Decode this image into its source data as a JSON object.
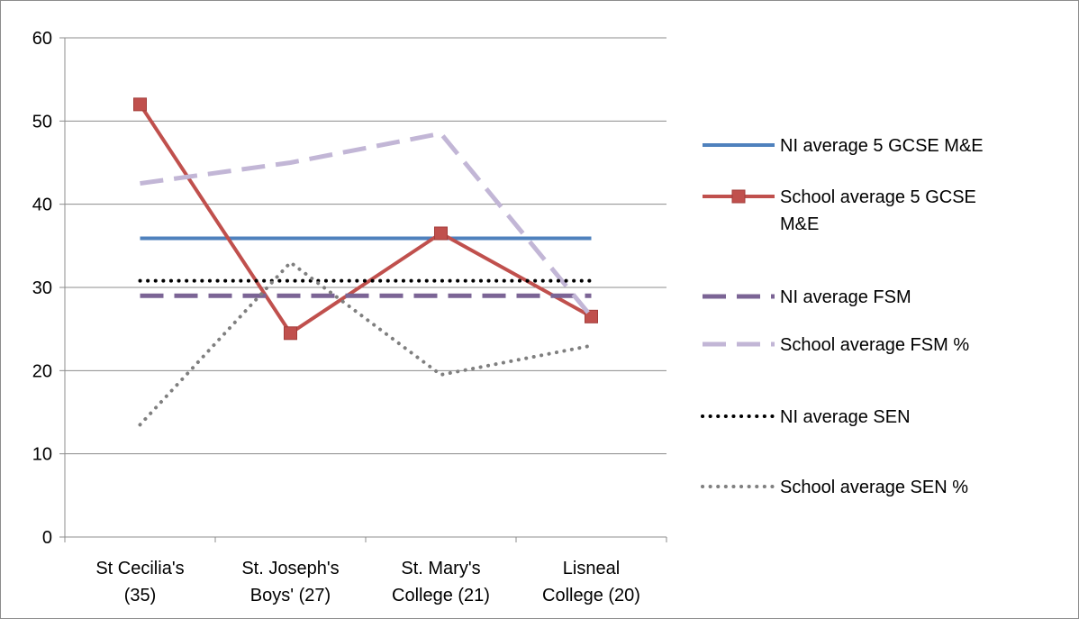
{
  "chart_data": {
    "type": "line",
    "title": "",
    "xlabel": "",
    "ylabel": "",
    "ylim": [
      0,
      60
    ],
    "yticks": [
      0,
      10,
      20,
      30,
      40,
      50,
      60
    ],
    "grid": true,
    "legend_position": "right",
    "categories": [
      [
        "St Cecilia's",
        "(35)"
      ],
      [
        "St. Joseph's",
        "Boys' (27)"
      ],
      [
        "St. Mary's",
        "College (21)"
      ],
      [
        "Lisneal",
        "College (20)"
      ]
    ],
    "series": [
      {
        "name": "NI average 5 GCSE M&E",
        "legend_lines": [
          "NI average 5 GCSE M&E"
        ],
        "values": [
          35.9,
          35.9,
          35.9,
          35.9
        ],
        "color": "#4f81bd",
        "style": "solid",
        "marker": "none"
      },
      {
        "name": "School average 5 GCSE M&E",
        "legend_lines": [
          "School average 5 GCSE",
          "M&E"
        ],
        "values": [
          52,
          24.5,
          36.5,
          26.5
        ],
        "color": "#c0504d",
        "style": "solid",
        "marker": "square"
      },
      {
        "name": "NI average FSM",
        "legend_lines": [
          "NI average FSM"
        ],
        "values": [
          29,
          29,
          29,
          29
        ],
        "color": "#7b6495",
        "style": "dash",
        "marker": "none"
      },
      {
        "name": "School average FSM %",
        "legend_lines": [
          "School average FSM %"
        ],
        "values": [
          42.5,
          45,
          48.5,
          26.5
        ],
        "color": "#c2b6d6",
        "style": "dash",
        "marker": "none"
      },
      {
        "name": "NI average SEN",
        "legend_lines": [
          "NI average SEN"
        ],
        "values": [
          30.8,
          30.8,
          30.8,
          30.8
        ],
        "color": "#000000",
        "style": "dot",
        "marker": "none"
      },
      {
        "name": "School average SEN %",
        "legend_lines": [
          "School average SEN %"
        ],
        "values": [
          13.5,
          33,
          19.5,
          23
        ],
        "color": "#7f7f7f",
        "style": "dot",
        "marker": "none"
      }
    ]
  }
}
